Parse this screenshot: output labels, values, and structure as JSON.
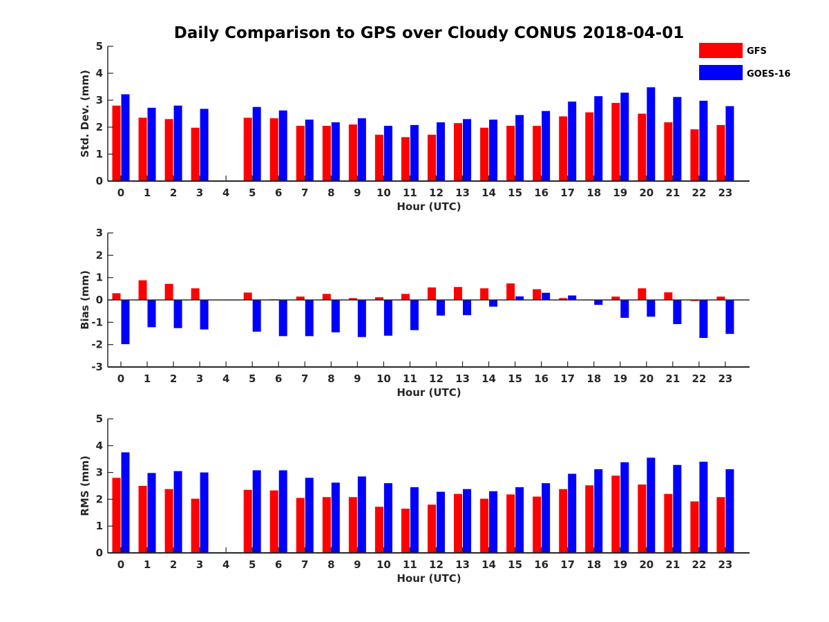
{
  "chart_data": {
    "type": "bar",
    "title": "Daily Comparison to GPS over Cloudy CONUS 2018-04-01",
    "legend": {
      "placement": "top-right",
      "entries": [
        "GFS",
        "GOES-16"
      ]
    },
    "categories": [
      "0",
      "1",
      "2",
      "3",
      "4",
      "5",
      "6",
      "7",
      "8",
      "9",
      "10",
      "11",
      "12",
      "13",
      "14",
      "15",
      "16",
      "17",
      "18",
      "19",
      "20",
      "21",
      "22",
      "23"
    ],
    "xlabel": "Hour (UTC)",
    "colors": {
      "GFS": "#ff0000",
      "GOES-16": "#0000ff"
    },
    "panels": [
      {
        "ylabel": "Std. Dev. (mm)",
        "ylim": [
          0,
          5
        ],
        "yticks": [
          0,
          1,
          2,
          3,
          4,
          5
        ],
        "series": [
          {
            "name": "GFS",
            "values": [
              2.8,
              2.35,
              2.3,
              1.98,
              null,
              2.35,
              2.33,
              2.05,
              2.05,
              2.1,
              1.72,
              1.63,
              1.72,
              2.15,
              1.98,
              2.05,
              2.05,
              2.4,
              2.55,
              2.9,
              2.5,
              2.18,
              1.92,
              2.08
            ]
          },
          {
            "name": "GOES-16",
            "values": [
              3.22,
              2.72,
              2.8,
              2.68,
              null,
              2.75,
              2.62,
              2.28,
              2.18,
              2.33,
              2.05,
              2.08,
              2.18,
              2.3,
              2.28,
              2.45,
              2.6,
              2.95,
              3.15,
              3.28,
              3.48,
              3.12,
              2.98,
              2.78
            ]
          }
        ]
      },
      {
        "ylabel": "Bias (mm)",
        "ylim": [
          -3,
          3
        ],
        "yticks": [
          -3,
          -2,
          -1,
          0,
          1,
          2,
          3
        ],
        "series": [
          {
            "name": "GFS",
            "values": [
              0.3,
              0.88,
              0.72,
              0.52,
              null,
              0.33,
              0.03,
              0.15,
              0.27,
              0.08,
              0.12,
              0.27,
              0.56,
              0.58,
              0.52,
              0.74,
              0.48,
              0.08,
              0.0,
              0.15,
              0.52,
              0.34,
              -0.05,
              0.15
            ]
          },
          {
            "name": "GOES-16",
            "values": [
              -1.98,
              -1.22,
              -1.26,
              -1.32,
              null,
              -1.42,
              -1.62,
              -1.62,
              -1.45,
              -1.66,
              -1.6,
              -1.35,
              -0.7,
              -0.68,
              -0.3,
              0.16,
              0.32,
              0.2,
              -0.22,
              -0.8,
              -0.75,
              -1.08,
              -1.7,
              -1.52
            ]
          }
        ]
      },
      {
        "ylabel": "RMS (mm)",
        "ylim": [
          0,
          5
        ],
        "yticks": [
          0,
          1,
          2,
          3,
          4,
          5
        ],
        "series": [
          {
            "name": "GFS",
            "values": [
              2.8,
              2.5,
              2.38,
              2.02,
              null,
              2.35,
              2.33,
              2.05,
              2.08,
              2.08,
              1.72,
              1.65,
              1.8,
              2.2,
              2.02,
              2.18,
              2.1,
              2.38,
              2.52,
              2.88,
              2.55,
              2.2,
              1.92,
              2.08
            ]
          },
          {
            "name": "GOES-16",
            "values": [
              3.75,
              2.98,
              3.05,
              3.0,
              null,
              3.08,
              3.08,
              2.8,
              2.62,
              2.85,
              2.6,
              2.45,
              2.28,
              2.38,
              2.3,
              2.45,
              2.6,
              2.95,
              3.12,
              3.38,
              3.55,
              3.28,
              3.4,
              3.12
            ]
          }
        ]
      }
    ]
  }
}
